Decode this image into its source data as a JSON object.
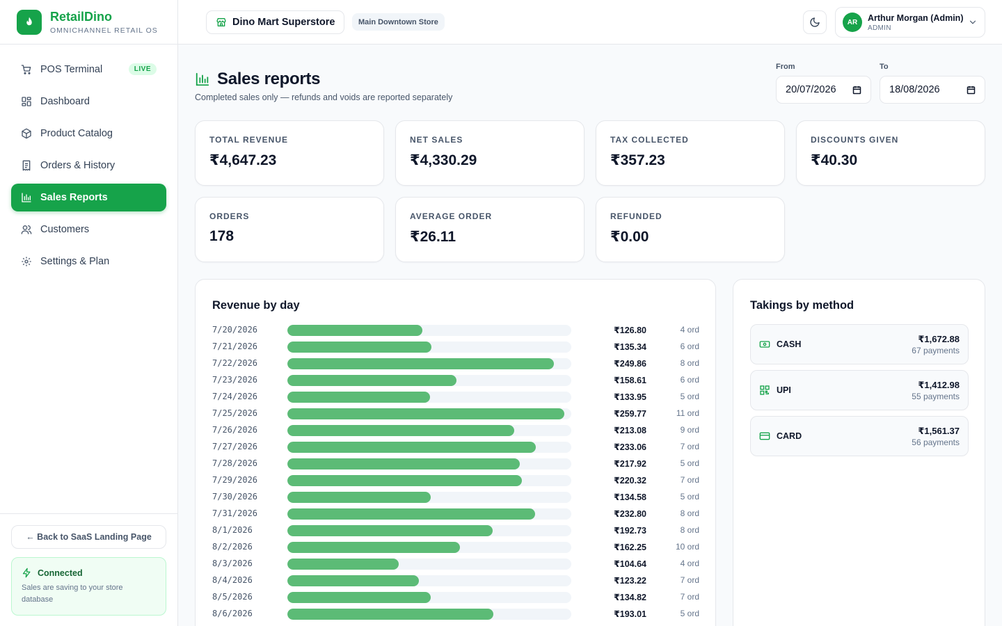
{
  "brand": {
    "name": "RetailDino",
    "tagline": "OMNICHANNEL RETAIL OS"
  },
  "sidebar": {
    "items": [
      {
        "label": "POS Terminal",
        "icon": "cart-icon",
        "badge": "LIVE"
      },
      {
        "label": "Dashboard",
        "icon": "grid-icon"
      },
      {
        "label": "Product Catalog",
        "icon": "box-icon"
      },
      {
        "label": "Orders & History",
        "icon": "receipt-icon"
      },
      {
        "label": "Sales Reports",
        "icon": "bar-chart-icon",
        "active": true
      },
      {
        "label": "Customers",
        "icon": "users-icon"
      },
      {
        "label": "Settings & Plan",
        "icon": "gear-icon"
      }
    ],
    "back_link": "← Back to SaaS Landing Page",
    "status": {
      "title": "Connected",
      "description": "Sales are saving to your store database"
    }
  },
  "header": {
    "store_name": "Dino Mart Superstore",
    "branch": "Main Downtown Store",
    "user": {
      "initials": "AR",
      "name": "Arthur Morgan (Admin)",
      "role": "ADMIN"
    }
  },
  "page": {
    "title": "Sales reports",
    "subtitle": "Completed sales only — refunds and voids are reported separately",
    "from_label": "From",
    "from_value": "20/07/2026",
    "to_label": "To",
    "to_value": "18/08/2026"
  },
  "stats": [
    {
      "label": "TOTAL REVENUE",
      "value": "₹4,647.23"
    },
    {
      "label": "NET SALES",
      "value": "₹4,330.29"
    },
    {
      "label": "TAX COLLECTED",
      "value": "₹357.23"
    },
    {
      "label": "DISCOUNTS GIVEN",
      "value": "₹40.30"
    },
    {
      "label": "ORDERS",
      "value": "178"
    },
    {
      "label": "AVERAGE ORDER",
      "value": "₹26.11"
    },
    {
      "label": "REFUNDED",
      "value": "₹0.00"
    }
  ],
  "revenue_by_day": {
    "title": "Revenue by day",
    "max_value": 259.77,
    "rows": [
      {
        "date": "7/20/2026",
        "amount": "₹126.80",
        "value": 126.8,
        "orders": "4 ord"
      },
      {
        "date": "7/21/2026",
        "amount": "₹135.34",
        "value": 135.34,
        "orders": "6 ord"
      },
      {
        "date": "7/22/2026",
        "amount": "₹249.86",
        "value": 249.86,
        "orders": "8 ord"
      },
      {
        "date": "7/23/2026",
        "amount": "₹158.61",
        "value": 158.61,
        "orders": "6 ord"
      },
      {
        "date": "7/24/2026",
        "amount": "₹133.95",
        "value": 133.95,
        "orders": "5 ord"
      },
      {
        "date": "7/25/2026",
        "amount": "₹259.77",
        "value": 259.77,
        "orders": "11 ord"
      },
      {
        "date": "7/26/2026",
        "amount": "₹213.08",
        "value": 213.08,
        "orders": "9 ord"
      },
      {
        "date": "7/27/2026",
        "amount": "₹233.06",
        "value": 233.06,
        "orders": "7 ord"
      },
      {
        "date": "7/28/2026",
        "amount": "₹217.92",
        "value": 217.92,
        "orders": "5 ord"
      },
      {
        "date": "7/29/2026",
        "amount": "₹220.32",
        "value": 220.32,
        "orders": "7 ord"
      },
      {
        "date": "7/30/2026",
        "amount": "₹134.58",
        "value": 134.58,
        "orders": "5 ord"
      },
      {
        "date": "7/31/2026",
        "amount": "₹232.80",
        "value": 232.8,
        "orders": "8 ord"
      },
      {
        "date": "8/1/2026",
        "amount": "₹192.73",
        "value": 192.73,
        "orders": "8 ord"
      },
      {
        "date": "8/2/2026",
        "amount": "₹162.25",
        "value": 162.25,
        "orders": "10 ord"
      },
      {
        "date": "8/3/2026",
        "amount": "₹104.64",
        "value": 104.64,
        "orders": "4 ord"
      },
      {
        "date": "8/4/2026",
        "amount": "₹123.22",
        "value": 123.22,
        "orders": "7 ord"
      },
      {
        "date": "8/5/2026",
        "amount": "₹134.82",
        "value": 134.82,
        "orders": "7 ord"
      },
      {
        "date": "8/6/2026",
        "amount": "₹193.01",
        "value": 193.01,
        "orders": "5 ord"
      }
    ]
  },
  "takings": {
    "title": "Takings by method",
    "methods": [
      {
        "name": "CASH",
        "icon": "cash-icon",
        "amount": "₹1,672.88",
        "count": "67 payments"
      },
      {
        "name": "UPI",
        "icon": "qr-code-icon",
        "amount": "₹1,412.98",
        "count": "55 payments"
      },
      {
        "name": "CARD",
        "icon": "card-icon",
        "amount": "₹1,561.37",
        "count": "56 payments"
      }
    ]
  },
  "colors": {
    "accent": "#16a34a",
    "bar": "#5cbb76",
    "track": "#f1f5f9"
  }
}
